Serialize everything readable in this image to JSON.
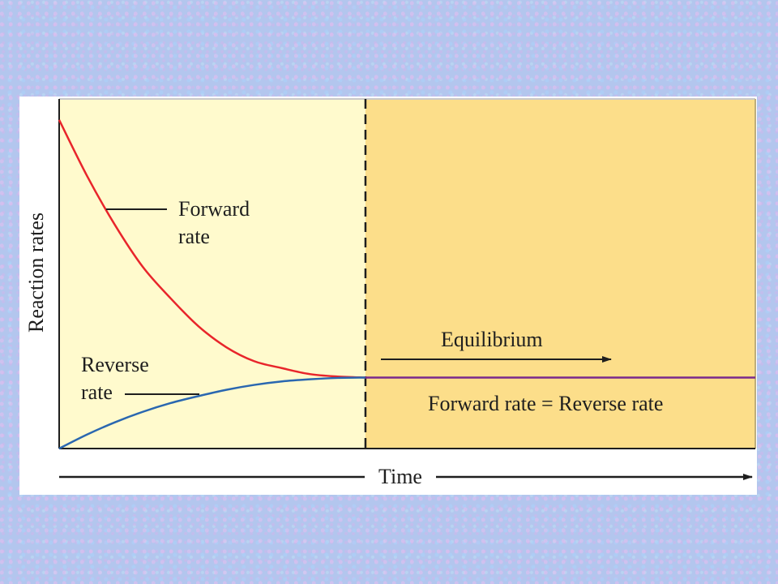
{
  "chart_data": {
    "type": "line",
    "xlabel": "Time",
    "ylabel": "Reaction rates",
    "x_ticks": [],
    "y_ticks": [],
    "xlim": [
      0,
      100
    ],
    "ylim": [
      0,
      100
    ],
    "equilibrium_x": 44,
    "series": [
      {
        "name": "Forward rate",
        "color": "#e8252b",
        "x": [
          0,
          4,
          8,
          12,
          16,
          20,
          24,
          28,
          32,
          36,
          40,
          44
        ],
        "y": [
          94,
          78,
          64,
          52,
          43,
          35,
          29,
          25,
          23,
          21.3,
          20.6,
          20.3
        ]
      },
      {
        "name": "Reverse rate",
        "color": "#2a67b0",
        "x": [
          0,
          4,
          8,
          12,
          16,
          20,
          24,
          28,
          32,
          36,
          40,
          44
        ],
        "y": [
          0,
          4,
          7.5,
          10.5,
          13,
          15,
          16.8,
          18.2,
          19.2,
          19.8,
          20.2,
          20.3
        ]
      },
      {
        "name": "Forward rate = Reverse rate",
        "color": "#7a2a8c",
        "x": [
          44,
          100
        ],
        "y": [
          20.3,
          20.3
        ]
      }
    ],
    "annotations": [
      {
        "id": "forward",
        "lines": [
          "Forward",
          "rate"
        ]
      },
      {
        "id": "reverse",
        "lines": [
          "Reverse",
          "rate"
        ]
      },
      {
        "id": "equilibrium",
        "text": "Equilibrium"
      },
      {
        "id": "equal",
        "text": "Forward rate = Reverse rate"
      }
    ],
    "colors": {
      "pre_equilibrium_bg": "#fffacd",
      "equilibrium_bg": "#fcde8a",
      "axis": "#1e1e1e"
    },
    "grid": false
  }
}
